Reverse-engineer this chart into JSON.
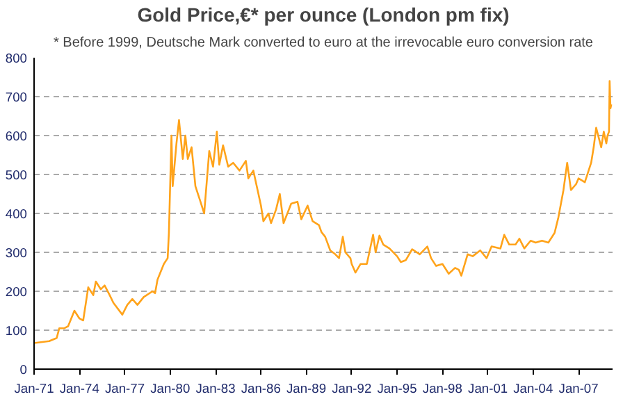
{
  "chart_data": {
    "type": "line",
    "title": "Gold Price,€* per ounce (London pm fix)",
    "subtitle": "* Before 1999, Deutsche Mark converted to euro at the irrevocable euro conversion rate",
    "x": [
      "1971-01",
      "1972-01",
      "1972-07",
      "1972-09",
      "1973-01",
      "1973-04",
      "1973-09",
      "1974-01",
      "1974-04",
      "1974-08",
      "1974-12",
      "1975-02",
      "1975-06",
      "1975-09",
      "1976-01",
      "1976-04",
      "1976-11",
      "1977-03",
      "1977-07",
      "1977-11",
      "1978-04",
      "1978-11",
      "1979-01",
      "1979-03",
      "1979-08",
      "1979-11",
      "1979-12",
      "1980-02",
      "1980-03",
      "1980-06",
      "1980-08",
      "1980-11",
      "1981-01",
      "1981-03",
      "1981-06",
      "1981-09",
      "1982-01",
      "1982-04",
      "1982-08",
      "1982-11",
      "1983-02",
      "1983-04",
      "1983-07",
      "1983-11",
      "1984-03",
      "1984-08",
      "1985-01",
      "1985-03",
      "1985-07",
      "1985-11",
      "1986-01",
      "1986-03",
      "1986-07",
      "1986-09",
      "1987-01",
      "1987-04",
      "1987-07",
      "1988-01",
      "1988-06",
      "1988-09",
      "1989-02",
      "1989-06",
      "1989-11",
      "1990-01",
      "1990-04",
      "1990-08",
      "1990-12",
      "1991-03",
      "1991-06",
      "1991-08",
      "1991-12",
      "1992-01",
      "1992-04",
      "1992-08",
      "1993-01",
      "1993-06",
      "1993-08",
      "1993-11",
      "1994-02",
      "1994-07",
      "1995-01",
      "1995-04",
      "1995-08",
      "1996-01",
      "1996-07",
      "1997-01",
      "1997-04",
      "1997-08",
      "1998-01",
      "1998-06",
      "1998-11",
      "1999-02",
      "1999-04",
      "1999-09",
      "2000-01",
      "2000-07",
      "2000-12",
      "2001-04",
      "2001-11",
      "2002-02",
      "2002-06",
      "2002-11",
      "2003-02",
      "2003-06",
      "2003-11",
      "2004-03",
      "2004-08",
      "2005-01",
      "2005-06",
      "2005-09",
      "2006-01",
      "2006-04",
      "2006-07",
      "2006-11",
      "2007-01",
      "2007-06",
      "2007-11",
      "2008-01",
      "2008-03",
      "2008-07",
      "2008-09",
      "2008-11",
      "2008-12",
      "2009-01-05",
      "2009-01-20",
      "2009-02-10",
      "2009-03-01"
    ],
    "series": [
      {
        "color": "#ffa31a",
        "values": [
          67,
          72,
          80,
          105,
          105,
          110,
          150,
          130,
          125,
          210,
          190,
          225,
          205,
          215,
          190,
          170,
          140,
          165,
          180,
          165,
          185,
          200,
          195,
          230,
          270,
          285,
          350,
          600,
          470,
          580,
          640,
          540,
          600,
          540,
          570,
          470,
          430,
          400,
          560,
          520,
          610,
          525,
          575,
          520,
          530,
          510,
          535,
          490,
          510,
          450,
          420,
          380,
          400,
          375,
          410,
          450,
          375,
          425,
          430,
          385,
          420,
          380,
          370,
          352,
          340,
          305,
          295,
          285,
          340,
          300,
          285,
          270,
          248,
          270,
          270,
          345,
          300,
          343,
          320,
          310,
          290,
          275,
          280,
          308,
          295,
          315,
          285,
          265,
          270,
          245,
          260,
          255,
          240,
          295,
          290,
          305,
          285,
          315,
          310,
          345,
          320,
          320,
          335,
          310,
          330,
          325,
          330,
          325,
          350,
          390,
          460,
          530,
          460,
          475,
          490,
          480,
          530,
          570,
          620,
          570,
          610,
          580,
          600,
          610,
          740,
          670,
          680
        ]
      }
    ],
    "xlim": [
      "1971-01",
      "2009-04"
    ],
    "xticks": [
      {
        "value": "1971-01",
        "label": "Jan-71"
      },
      {
        "value": "1974-01",
        "label": "Jan-74"
      },
      {
        "value": "1977-01",
        "label": "Jan-77"
      },
      {
        "value": "1980-01",
        "label": "Jan-80"
      },
      {
        "value": "1983-01",
        "label": "Jan-83"
      },
      {
        "value": "1986-01",
        "label": "Jan-86"
      },
      {
        "value": "1989-01",
        "label": "Jan-89"
      },
      {
        "value": "1992-01",
        "label": "Jan-92"
      },
      {
        "value": "1995-01",
        "label": "Jan-95"
      },
      {
        "value": "1998-01",
        "label": "Jan-98"
      },
      {
        "value": "2001-01",
        "label": "Jan-01"
      },
      {
        "value": "2004-01",
        "label": "Jan-04"
      },
      {
        "value": "2007-01",
        "label": "Jan-07"
      }
    ],
    "ylim": [
      0,
      800
    ],
    "yticks": [
      0,
      100,
      200,
      300,
      400,
      500,
      600,
      700,
      800
    ],
    "grid": "y",
    "line_style": "solid"
  }
}
